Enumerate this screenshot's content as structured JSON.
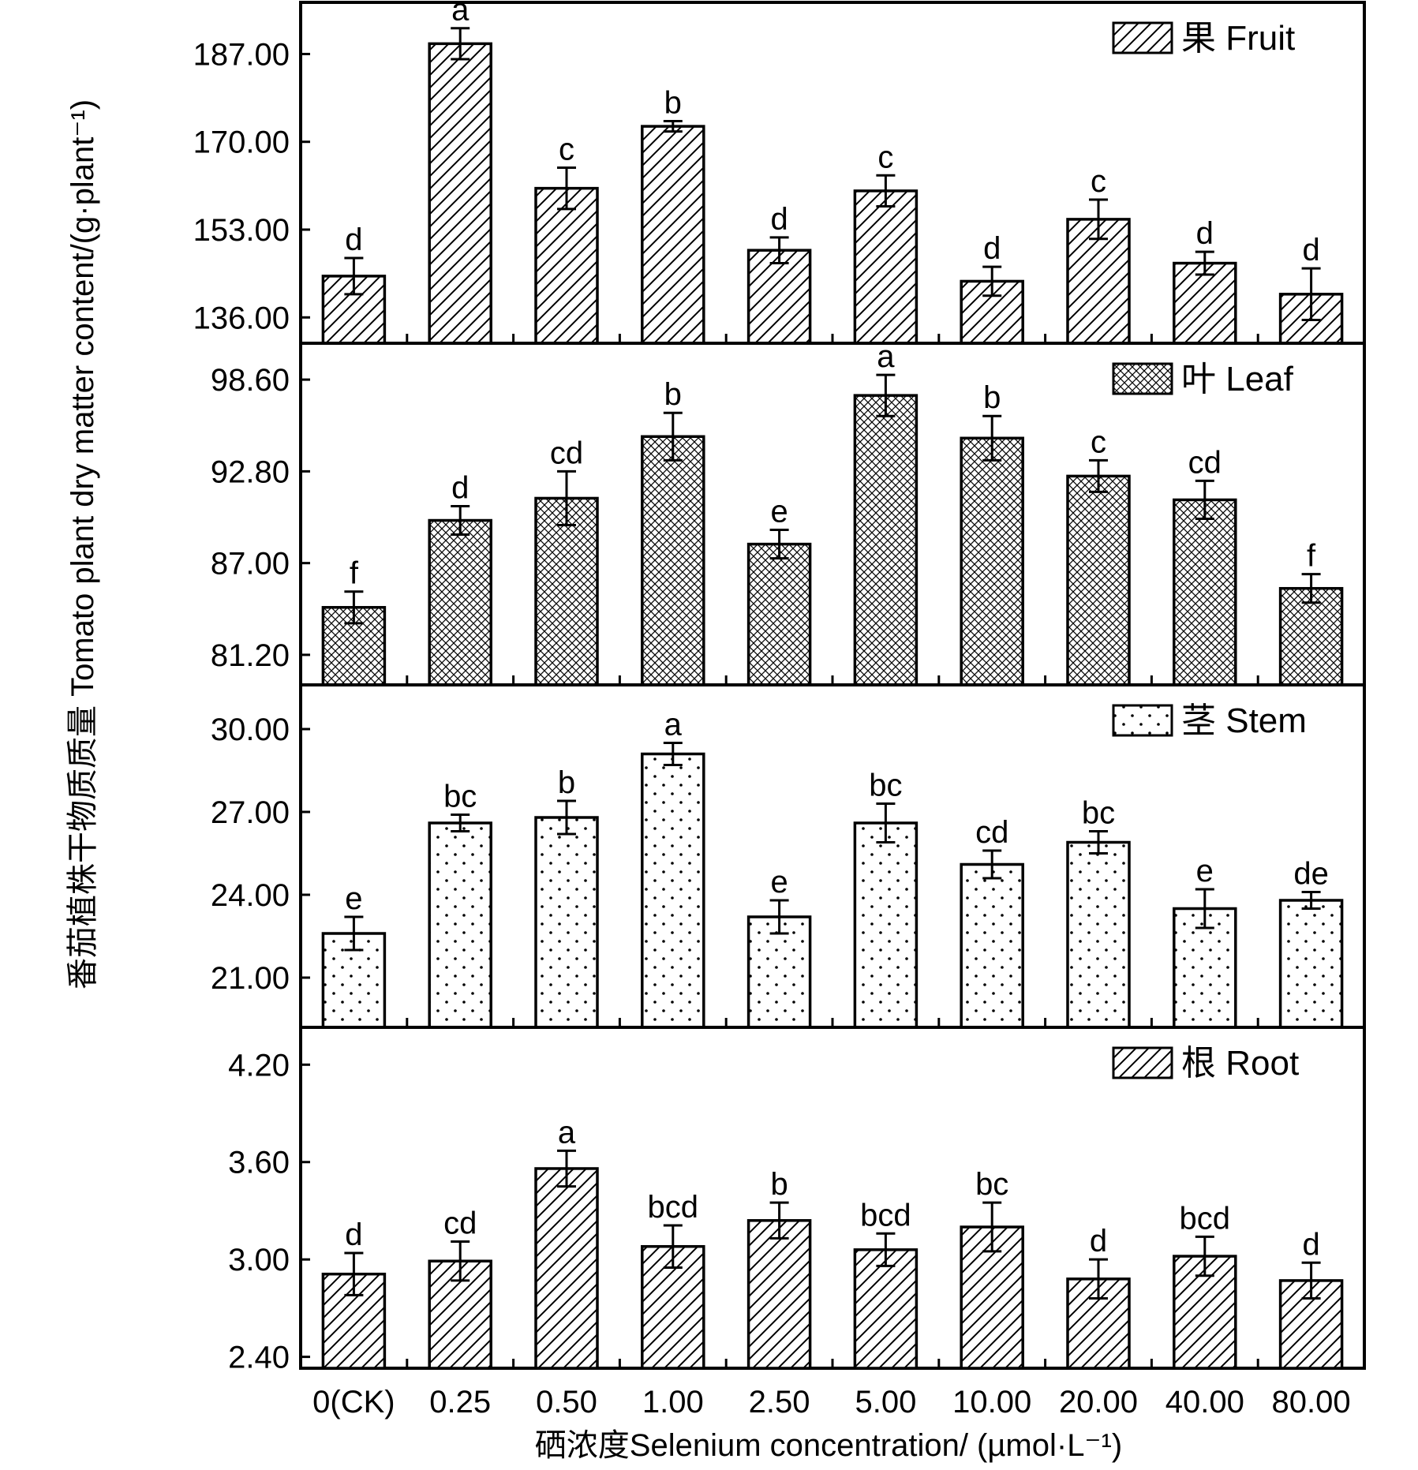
{
  "chart_data": {
    "type": "bar",
    "y_axis_title": "番茄植株干物质质量 Tomato plant dry matter content/(g·plant⁻¹)",
    "x_axis_title": "硒浓度Selenium concentration/ (µmol·L⁻¹)",
    "categories": [
      "0(CK)",
      "0.25",
      "0.50",
      "1.00",
      "2.50",
      "5.00",
      "10.00",
      "20.00",
      "40.00",
      "80.00"
    ],
    "panels": [
      {
        "legend": "果 Fruit",
        "pattern": "diagonal-hatch",
        "ylim": [
          131,
          197
        ],
        "ticks": [
          "187.00",
          "170.00",
          "153.00",
          "136.00"
        ],
        "values": [
          144,
          189,
          161,
          173,
          149,
          160.5,
          143,
          155,
          146.5,
          140.5
        ],
        "errors": [
          3.5,
          3,
          4,
          1,
          2.5,
          3,
          2.8,
          3.8,
          2.2,
          5
        ],
        "letters": [
          "d",
          "a",
          "c",
          "b",
          "d",
          "c",
          "d",
          "c",
          "d",
          "d"
        ]
      },
      {
        "legend": "叶 Leaf",
        "pattern": "crosshatch",
        "ylim": [
          79.3,
          100.9
        ],
        "ticks": [
          "98.60",
          "92.80",
          "87.00",
          "81.20"
        ],
        "values": [
          84.2,
          89.7,
          91.1,
          95.0,
          88.2,
          97.6,
          94.9,
          92.5,
          91.0,
          85.4
        ],
        "errors": [
          1.0,
          0.9,
          1.7,
          1.5,
          0.9,
          1.3,
          1.4,
          1.0,
          1.2,
          0.9
        ],
        "letters": [
          "f",
          "d",
          "cd",
          "b",
          "e",
          "a",
          "b",
          "c",
          "cd",
          "f"
        ]
      },
      {
        "legend": "茎 Stem",
        "pattern": "dots",
        "ylim": [
          19.2,
          31.6
        ],
        "ticks": [
          "30.00",
          "27.00",
          "24.00",
          "21.00"
        ],
        "values": [
          22.6,
          26.6,
          26.8,
          29.1,
          23.2,
          26.6,
          25.1,
          25.9,
          23.5,
          23.8
        ],
        "errors": [
          0.6,
          0.3,
          0.6,
          0.4,
          0.6,
          0.7,
          0.5,
          0.4,
          0.7,
          0.3
        ],
        "letters": [
          "e",
          "bc",
          "b",
          "a",
          "e",
          "bc",
          "cd",
          "bc",
          "e",
          "de"
        ]
      },
      {
        "legend": "根 Root",
        "pattern": "diagonal-hatch",
        "ylim": [
          2.33,
          4.43
        ],
        "ticks": [
          "4.20",
          "3.60",
          "3.00",
          "2.40"
        ],
        "values": [
          2.91,
          2.99,
          3.56,
          3.08,
          3.24,
          3.06,
          3.2,
          2.88,
          3.02,
          2.87
        ],
        "errors": [
          0.13,
          0.12,
          0.11,
          0.13,
          0.11,
          0.1,
          0.15,
          0.12,
          0.12,
          0.11
        ],
        "letters": [
          "d",
          "cd",
          "a",
          "bcd",
          "b",
          "bcd",
          "bc",
          "d",
          "bcd",
          "d"
        ]
      }
    ]
  }
}
